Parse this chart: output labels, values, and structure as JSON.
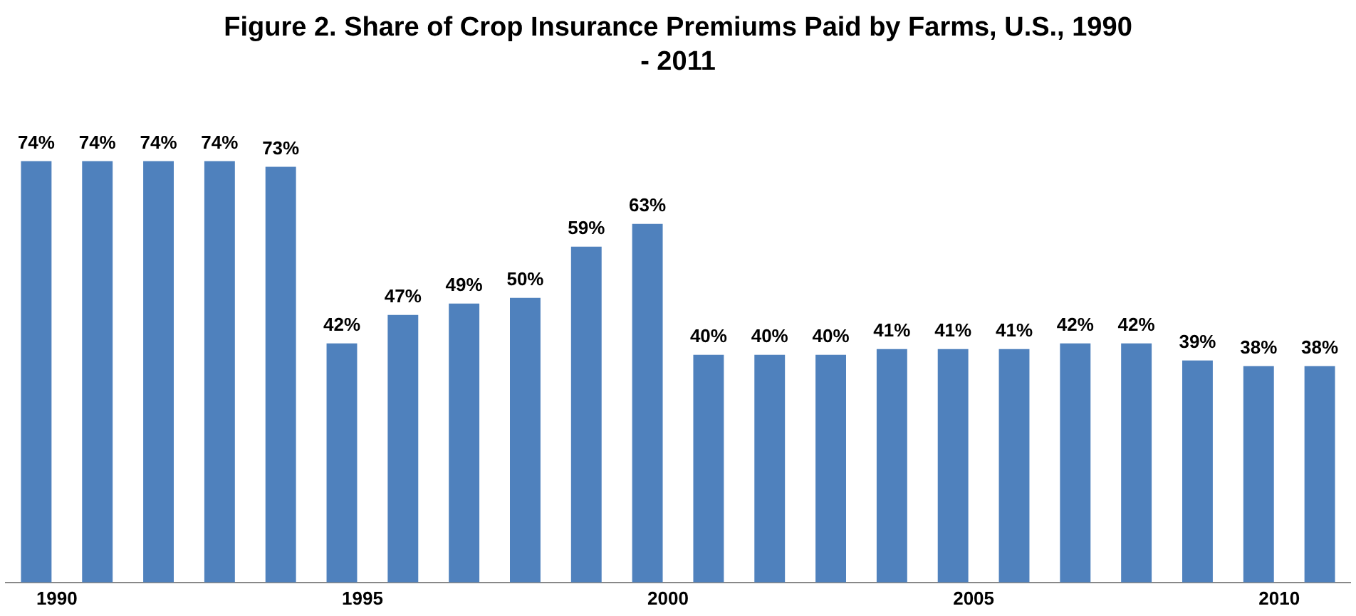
{
  "chart_data": {
    "type": "bar",
    "title": "Figure 2.  Share of Crop Insurance Premiums Paid by Farms, U.S., 1990 - 2011",
    "categories": [
      "1990",
      null,
      null,
      null,
      null,
      "1995",
      null,
      null,
      null,
      null,
      "2000",
      null,
      null,
      null,
      null,
      "2005",
      null,
      null,
      null,
      null,
      "2010",
      null
    ],
    "series": [
      {
        "color": "#4f81bd",
        "values": [
          74,
          74,
          74,
          74,
          73,
          42,
          47,
          49,
          50,
          59,
          63,
          40,
          40,
          40,
          41,
          41,
          41,
          42,
          42,
          39,
          38,
          38
        ],
        "value_labels": [
          "74%",
          "74%",
          "74%",
          "74%",
          "73%",
          "42%",
          "47%",
          "49%",
          "50%",
          "59%",
          "63%",
          "40%",
          "40%",
          "40%",
          "41%",
          "41%",
          "41%",
          "42%",
          "42%",
          "39%",
          "38%",
          "38%"
        ]
      }
    ],
    "grid": false,
    "legend": false
  }
}
